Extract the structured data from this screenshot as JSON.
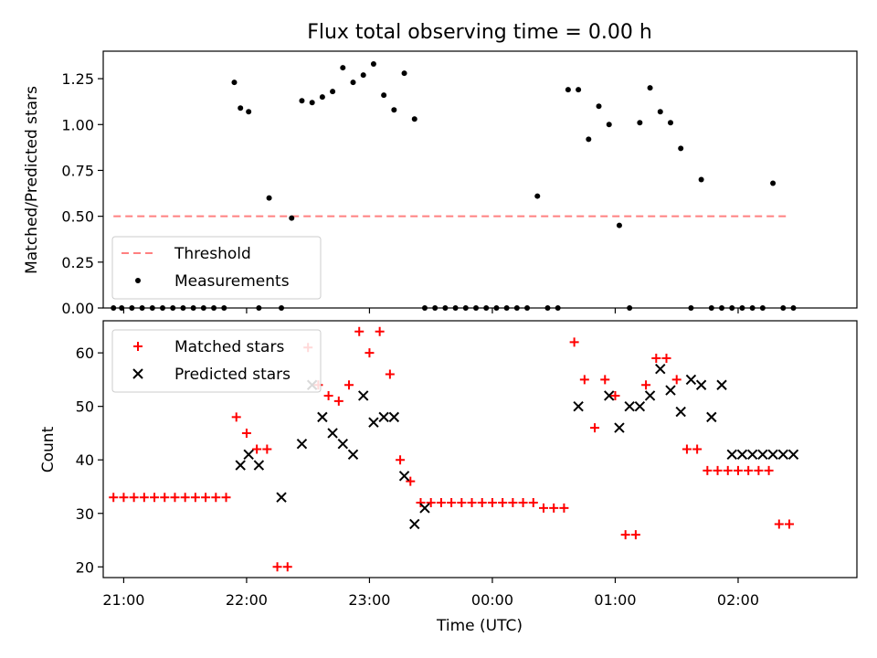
{
  "chart_data": [
    {
      "type": "scatter",
      "title": "Flux total observing time = 0.00 h",
      "xlabel": "",
      "ylabel": "Matched/Predicted stars",
      "xlim": [
        "20:50",
        "02:58"
      ],
      "ylim": [
        0,
        1.4
      ],
      "yticks": [
        0.0,
        0.25,
        0.5,
        0.75,
        1.0,
        1.25
      ],
      "ytick_labels": [
        "0.00",
        "0.25",
        "0.50",
        "0.75",
        "1.00",
        "1.25"
      ],
      "xticks": [
        "21:00",
        "22:00",
        "23:00",
        "00:00",
        "01:00",
        "02:00"
      ],
      "legend_position": "lower-left",
      "series": [
        {
          "name": "Threshold",
          "style": "dashed-line",
          "color": "#ff8080",
          "x": [
            "20:55",
            "02:25"
          ],
          "y": [
            0.5,
            0.5
          ]
        },
        {
          "name": "Measurements",
          "style": "dot",
          "color": "#000000",
          "x": [
            "20:55",
            "20:59",
            "21:04",
            "21:09",
            "21:14",
            "21:19",
            "21:24",
            "21:29",
            "21:34",
            "21:39",
            "21:44",
            "21:49",
            "21:54",
            "21:57",
            "22:01",
            "22:06",
            "22:11",
            "22:17",
            "22:22",
            "22:27",
            "22:32",
            "22:37",
            "22:42",
            "22:47",
            "22:52",
            "22:57",
            "23:02",
            "23:07",
            "23:12",
            "23:17",
            "23:22",
            "23:27",
            "23:32",
            "23:37",
            "23:42",
            "23:47",
            "23:52",
            "23:57",
            "00:02",
            "00:07",
            "00:12",
            "00:17",
            "00:22",
            "00:27",
            "00:32",
            "00:37",
            "00:42",
            "00:47",
            "00:52",
            "00:57",
            "01:02",
            "01:07",
            "01:12",
            "01:17",
            "01:22",
            "01:27",
            "01:32",
            "01:37",
            "01:42",
            "01:47",
            "01:52",
            "01:57",
            "02:02",
            "02:07",
            "02:12",
            "02:17",
            "02:22",
            "02:27"
          ],
          "y": [
            0,
            0,
            0,
            0,
            0,
            0,
            0,
            0,
            0,
            0,
            0,
            0,
            1.23,
            1.09,
            1.07,
            0,
            0.6,
            0,
            0.49,
            1.13,
            1.12,
            1.15,
            1.18,
            1.31,
            1.23,
            1.27,
            1.33,
            1.16,
            1.08,
            1.28,
            1.03,
            0,
            0,
            0,
            0,
            0,
            0,
            0,
            0,
            0,
            0,
            0,
            0.61,
            0,
            0,
            1.19,
            1.19,
            0.92,
            1.1,
            1.0,
            0.45,
            0,
            1.01,
            1.2,
            1.07,
            1.01,
            0.87,
            0,
            0.7,
            0,
            0,
            0,
            0,
            0,
            0,
            0.68,
            0,
            0
          ]
        }
      ]
    },
    {
      "type": "scatter",
      "title": "",
      "xlabel": "Time (UTC)",
      "ylabel": "Count",
      "xlim": [
        "20:50",
        "02:58"
      ],
      "ylim": [
        18,
        66
      ],
      "yticks": [
        20,
        30,
        40,
        50,
        60
      ],
      "xticks": [
        "21:00",
        "22:00",
        "23:00",
        "00:00",
        "01:00",
        "02:00"
      ],
      "legend_position": "upper-left",
      "series": [
        {
          "name": "Matched stars",
          "marker": "plus",
          "color": "#ff0000",
          "x": [
            "20:55",
            "21:00",
            "21:05",
            "21:10",
            "21:15",
            "21:20",
            "21:25",
            "21:30",
            "21:35",
            "21:40",
            "21:45",
            "21:50",
            "21:55",
            "22:00",
            "22:05",
            "22:10",
            "22:15",
            "22:20",
            "22:30",
            "22:35",
            "22:40",
            "22:45",
            "22:50",
            "22:55",
            "23:00",
            "23:05",
            "23:10",
            "23:15",
            "23:20",
            "23:25",
            "23:30",
            "23:35",
            "23:40",
            "23:45",
            "23:50",
            "23:55",
            "00:00",
            "00:05",
            "00:10",
            "00:15",
            "00:20",
            "00:25",
            "00:30",
            "00:35",
            "00:40",
            "00:45",
            "00:50",
            "00:55",
            "01:00",
            "01:05",
            "01:10",
            "01:15",
            "01:20",
            "01:25",
            "01:30",
            "01:35",
            "01:40",
            "01:45",
            "01:50",
            "01:55",
            "02:00",
            "02:05",
            "02:10",
            "02:15",
            "02:20",
            "02:25"
          ],
          "y": [
            33,
            33,
            33,
            33,
            33,
            33,
            33,
            33,
            33,
            33,
            33,
            33,
            48,
            45,
            42,
            42,
            20,
            20,
            61,
            54,
            52,
            51,
            54,
            64,
            60,
            64,
            56,
            40,
            36,
            32,
            32,
            32,
            32,
            32,
            32,
            32,
            32,
            32,
            32,
            32,
            32,
            31,
            31,
            31,
            62,
            55,
            46,
            55,
            52,
            26,
            26,
            54,
            59,
            59,
            55,
            42,
            42,
            38,
            38,
            38,
            38,
            38,
            38,
            38,
            28,
            28
          ]
        },
        {
          "name": "Predicted stars",
          "marker": "x",
          "color": "#000000",
          "x": [
            "21:57",
            "22:01",
            "22:06",
            "22:17",
            "22:27",
            "22:32",
            "22:37",
            "22:42",
            "22:47",
            "22:52",
            "22:57",
            "23:02",
            "23:07",
            "23:12",
            "23:17",
            "23:22",
            "23:27",
            "00:42",
            "00:57",
            "01:02",
            "01:07",
            "01:12",
            "01:17",
            "01:22",
            "01:27",
            "01:32",
            "01:37",
            "01:42",
            "01:47",
            "01:52",
            "01:57",
            "02:02",
            "02:07",
            "02:12",
            "02:17",
            "02:22",
            "02:27"
          ],
          "y": [
            39,
            41,
            39,
            33,
            43,
            54,
            48,
            45,
            43,
            41,
            52,
            47,
            48,
            48,
            37,
            28,
            31,
            50,
            52,
            46,
            50,
            50,
            52,
            57,
            53,
            49,
            55,
            54,
            48,
            54,
            41,
            41,
            41,
            41,
            41,
            41,
            41
          ]
        }
      ]
    }
  ]
}
